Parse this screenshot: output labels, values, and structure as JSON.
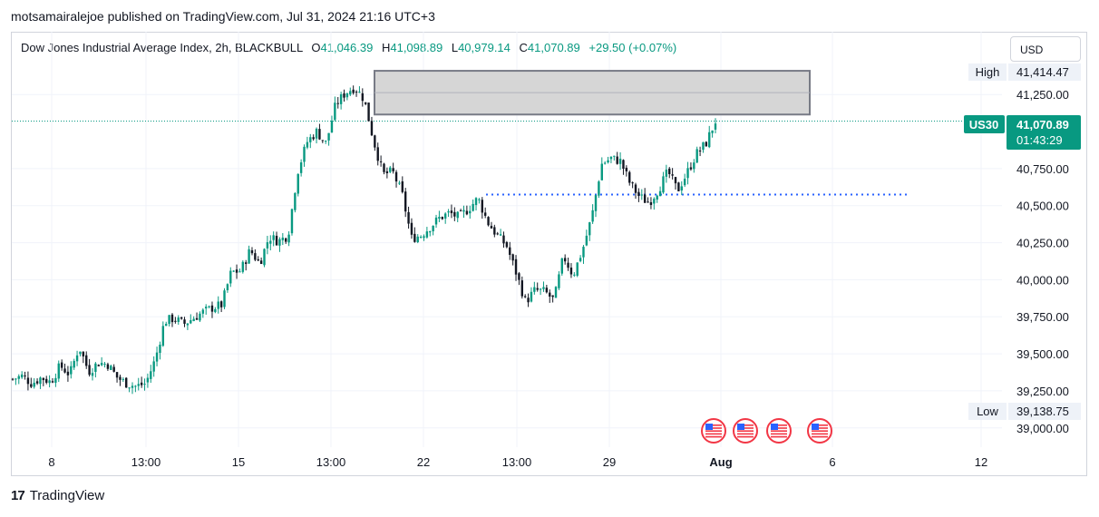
{
  "publish_line": "motsamairalejoe published on TradingView.com, Jul 31, 2024 21:16 UTC+3",
  "legend": {
    "title": "Dow Jones Industrial Average Index, 2h, BLACKBULL",
    "o_label": "O",
    "o_value": "41,046.39",
    "h_label": "H",
    "h_value": "41,098.89",
    "l_label": "L",
    "l_value": "40,979.14",
    "c_label": "C",
    "c_value": "41,070.89",
    "change": "+29.50 (+0.07%)"
  },
  "currency_button": "USD",
  "price_axis": {
    "high_label": "High",
    "high_value": "41,414.47",
    "low_label": "Low",
    "low_value": "39,138.75",
    "symbol_tag": "US30",
    "last_price": "41,070.89",
    "countdown": "01:43:29"
  },
  "footer": {
    "brand": "TradingView",
    "logo_icon": "tradingview-logo-icon"
  },
  "colors": {
    "up": "#089981",
    "down": "#131722",
    "zone_fill": "#d6d6d6",
    "zone_border": "#787b86",
    "dotted_line": "#2962ff",
    "last_price_bg": "#089981"
  },
  "chart_data": {
    "type": "candlestick",
    "symbol": "US30",
    "interval": "2h",
    "ylim": [
      38870,
      41490
    ],
    "y_ticks": [
      39000,
      39250,
      39500,
      39750,
      40000,
      40250,
      40500,
      40750,
      41250
    ],
    "y_tick_labels": [
      "39,000.00",
      "39,250.00",
      "39,500.00",
      "39,750.00",
      "40,000.00",
      "40,250.00",
      "40,500.00",
      "40,750.00",
      "41,250.00"
    ],
    "x_tick_labels": [
      "8",
      "13:00",
      "15",
      "13:00",
      "22",
      "13:00",
      "29",
      "Aug",
      "6",
      "12"
    ],
    "session_high": 41414.47,
    "session_low": 39138.75,
    "last_price": 41070.89,
    "resistance_zone": {
      "from": 41115,
      "to": 41410
    },
    "support_level": 40575,
    "event_markers": 4,
    "close_path": [
      39330,
      39350,
      39300,
      39340,
      39310,
      39420,
      39360,
      39550,
      39380,
      39440,
      39430,
      39340,
      39300,
      39280,
      39300,
      39460,
      39720,
      39740,
      39700,
      39740,
      39780,
      39810,
      39830,
      40050,
      40060,
      40200,
      40110,
      40290,
      40260,
      40300,
      40730,
      40930,
      41000,
      40920,
      41180,
      41260,
      41300,
      41220,
      40940,
      40710,
      40730,
      40580,
      40280,
      40300,
      40360,
      40420,
      40450,
      40420,
      40480,
      40550,
      40390,
      40300,
      40230,
      40050,
      39850,
      39930,
      39920,
      39860,
      40160,
      40030,
      40200,
      40430,
      40780,
      40820,
      40800,
      40650,
      40560,
      40520,
      40610,
      40730,
      40600,
      40720,
      40850,
      40920,
      41070
    ]
  }
}
